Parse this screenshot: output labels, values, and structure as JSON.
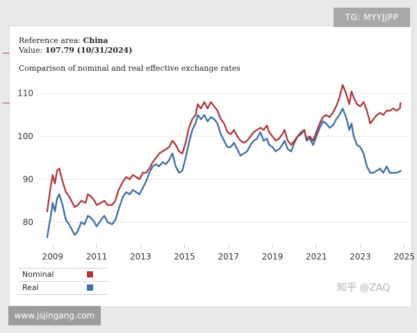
{
  "header": {
    "reference_label": "Reference area:",
    "reference_value": "China",
    "value_label": "Value:",
    "value_text": "107.79 (10/31/2024)"
  },
  "badges": {
    "telegram": "TG: MYYJJPP",
    "site": "www.jsjingang.com",
    "watermark": "知乎 @ZAQ"
  },
  "colors": {
    "nominal": "#b03a3e",
    "real": "#3f6fa8",
    "grid": "#e6e6e6"
  },
  "chart_data": {
    "type": "line",
    "title": "Comparison of nominal and real effective exchange rates",
    "xlabel": "",
    "ylabel": "",
    "xlim": [
      2008.5,
      2025.2
    ],
    "ylim": [
      76,
      114
    ],
    "x_ticks": [
      "2009",
      "2011",
      "2013",
      "2015",
      "2017",
      "2019",
      "2021",
      "2023",
      "2025"
    ],
    "y_ticks": [
      "80",
      "90",
      "100",
      "110"
    ],
    "grid": true,
    "legend_position": "bottom-left",
    "series": [
      {
        "name": "Nominal",
        "points": [
          [
            2008.75,
            82.5
          ],
          [
            2008.9,
            88
          ],
          [
            2009.0,
            91
          ],
          [
            2009.1,
            89
          ],
          [
            2009.2,
            92
          ],
          [
            2009.3,
            92.5
          ],
          [
            2009.45,
            89.5
          ],
          [
            2009.6,
            87
          ],
          [
            2009.75,
            86
          ],
          [
            2009.9,
            84.5
          ],
          [
            2010.0,
            83.5
          ],
          [
            2010.15,
            84
          ],
          [
            2010.3,
            85
          ],
          [
            2010.5,
            84.5
          ],
          [
            2010.6,
            86.5
          ],
          [
            2010.75,
            86
          ],
          [
            2010.9,
            85
          ],
          [
            2011.0,
            84
          ],
          [
            2011.2,
            84.5
          ],
          [
            2011.35,
            85
          ],
          [
            2011.5,
            84
          ],
          [
            2011.7,
            84
          ],
          [
            2011.85,
            85
          ],
          [
            2012.0,
            87.5
          ],
          [
            2012.2,
            89.5
          ],
          [
            2012.35,
            90.5
          ],
          [
            2012.5,
            90
          ],
          [
            2012.65,
            91
          ],
          [
            2012.8,
            90.5
          ],
          [
            2012.95,
            90
          ],
          [
            2013.1,
            91.5
          ],
          [
            2013.25,
            91.5
          ],
          [
            2013.4,
            92.5
          ],
          [
            2013.55,
            94
          ],
          [
            2013.7,
            95
          ],
          [
            2013.85,
            96
          ],
          [
            2014.0,
            96.5
          ],
          [
            2014.15,
            97
          ],
          [
            2014.3,
            97.5
          ],
          [
            2014.45,
            99
          ],
          [
            2014.6,
            98
          ],
          [
            2014.75,
            96.5
          ],
          [
            2014.9,
            96
          ],
          [
            2015.05,
            98.5
          ],
          [
            2015.2,
            102
          ],
          [
            2015.35,
            104
          ],
          [
            2015.5,
            105
          ],
          [
            2015.6,
            107.5
          ],
          [
            2015.75,
            106.5
          ],
          [
            2015.9,
            108
          ],
          [
            2016.05,
            106.5
          ],
          [
            2016.2,
            108
          ],
          [
            2016.35,
            107
          ],
          [
            2016.5,
            106
          ],
          [
            2016.65,
            104
          ],
          [
            2016.8,
            103
          ],
          [
            2016.95,
            101
          ],
          [
            2017.1,
            100.5
          ],
          [
            2017.25,
            101.5
          ],
          [
            2017.4,
            100
          ],
          [
            2017.55,
            99
          ],
          [
            2017.7,
            98.5
          ],
          [
            2017.85,
            99
          ],
          [
            2018.0,
            100
          ],
          [
            2018.15,
            101
          ],
          [
            2018.3,
            101.5
          ],
          [
            2018.45,
            102
          ],
          [
            2018.6,
            101.5
          ],
          [
            2018.75,
            102.5
          ],
          [
            2018.85,
            101
          ],
          [
            2019.0,
            100
          ],
          [
            2019.15,
            99
          ],
          [
            2019.3,
            99.5
          ],
          [
            2019.45,
            100.5
          ],
          [
            2019.55,
            101.5
          ],
          [
            2019.7,
            99
          ],
          [
            2019.85,
            98
          ],
          [
            2020.0,
            99
          ],
          [
            2020.15,
            100
          ],
          [
            2020.3,
            100.5
          ],
          [
            2020.45,
            101.5
          ],
          [
            2020.55,
            99.5
          ],
          [
            2020.7,
            100
          ],
          [
            2020.85,
            99
          ],
          [
            2021.0,
            101
          ],
          [
            2021.15,
            103
          ],
          [
            2021.3,
            104.5
          ],
          [
            2021.45,
            105
          ],
          [
            2021.6,
            104.5
          ],
          [
            2021.75,
            105.5
          ],
          [
            2021.9,
            107
          ],
          [
            2022.05,
            109
          ],
          [
            2022.2,
            112
          ],
          [
            2022.35,
            110
          ],
          [
            2022.5,
            107.5
          ],
          [
            2022.6,
            110.5
          ],
          [
            2022.7,
            109
          ],
          [
            2022.85,
            107.5
          ],
          [
            2023.0,
            107
          ],
          [
            2023.15,
            108
          ],
          [
            2023.3,
            106
          ],
          [
            2023.45,
            103
          ],
          [
            2023.6,
            104
          ],
          [
            2023.75,
            105
          ],
          [
            2023.9,
            105.5
          ],
          [
            2024.05,
            105
          ],
          [
            2024.2,
            106
          ],
          [
            2024.35,
            106
          ],
          [
            2024.5,
            106.5
          ],
          [
            2024.65,
            106
          ],
          [
            2024.8,
            106.5
          ],
          [
            2024.83,
            107.79
          ]
        ]
      },
      {
        "name": "Real",
        "points": [
          [
            2008.75,
            76.5
          ],
          [
            2008.9,
            81
          ],
          [
            2009.0,
            84.5
          ],
          [
            2009.1,
            82.5
          ],
          [
            2009.2,
            85.5
          ],
          [
            2009.3,
            86.5
          ],
          [
            2009.45,
            84
          ],
          [
            2009.6,
            80.5
          ],
          [
            2009.75,
            79.5
          ],
          [
            2009.9,
            78
          ],
          [
            2010.0,
            77
          ],
          [
            2010.15,
            78
          ],
          [
            2010.3,
            80
          ],
          [
            2010.45,
            79.5
          ],
          [
            2010.6,
            81.5
          ],
          [
            2010.75,
            81
          ],
          [
            2010.9,
            80
          ],
          [
            2011.0,
            79
          ],
          [
            2011.2,
            80.5
          ],
          [
            2011.35,
            81.5
          ],
          [
            2011.5,
            80
          ],
          [
            2011.7,
            79.5
          ],
          [
            2011.85,
            80.5
          ],
          [
            2012.0,
            83
          ],
          [
            2012.2,
            86
          ],
          [
            2012.35,
            87
          ],
          [
            2012.5,
            86.5
          ],
          [
            2012.65,
            87.5
          ],
          [
            2012.8,
            87
          ],
          [
            2012.95,
            86.5
          ],
          [
            2013.1,
            88
          ],
          [
            2013.25,
            89.5
          ],
          [
            2013.4,
            91.5
          ],
          [
            2013.55,
            93
          ],
          [
            2013.7,
            93.5
          ],
          [
            2013.85,
            93
          ],
          [
            2014.0,
            94
          ],
          [
            2014.15,
            93.5
          ],
          [
            2014.3,
            94.5
          ],
          [
            2014.45,
            96
          ],
          [
            2014.6,
            93
          ],
          [
            2014.75,
            91.5
          ],
          [
            2014.9,
            92
          ],
          [
            2015.05,
            95
          ],
          [
            2015.2,
            98.5
          ],
          [
            2015.35,
            101.5
          ],
          [
            2015.5,
            103
          ],
          [
            2015.6,
            105
          ],
          [
            2015.75,
            104
          ],
          [
            2015.9,
            105
          ],
          [
            2016.05,
            103.5
          ],
          [
            2016.2,
            104.5
          ],
          [
            2016.35,
            104
          ],
          [
            2016.5,
            103
          ],
          [
            2016.65,
            100.5
          ],
          [
            2016.8,
            99
          ],
          [
            2016.95,
            97.5
          ],
          [
            2017.1,
            97.5
          ],
          [
            2017.25,
            98.5
          ],
          [
            2017.4,
            97
          ],
          [
            2017.55,
            95.5
          ],
          [
            2017.7,
            96
          ],
          [
            2017.85,
            96.5
          ],
          [
            2018.0,
            98
          ],
          [
            2018.15,
            99
          ],
          [
            2018.3,
            99.5
          ],
          [
            2018.45,
            101
          ],
          [
            2018.6,
            99
          ],
          [
            2018.75,
            99.5
          ],
          [
            2018.85,
            98
          ],
          [
            2019.0,
            97.5
          ],
          [
            2019.15,
            96.5
          ],
          [
            2019.3,
            97
          ],
          [
            2019.45,
            98
          ],
          [
            2019.55,
            99
          ],
          [
            2019.7,
            97
          ],
          [
            2019.85,
            96.5
          ],
          [
            2020.0,
            98.5
          ],
          [
            2020.15,
            100
          ],
          [
            2020.3,
            101
          ],
          [
            2020.45,
            101.5
          ],
          [
            2020.55,
            99
          ],
          [
            2020.7,
            99.5
          ],
          [
            2020.85,
            98
          ],
          [
            2021.0,
            100
          ],
          [
            2021.15,
            102
          ],
          [
            2021.3,
            103.5
          ],
          [
            2021.45,
            103
          ],
          [
            2021.6,
            102
          ],
          [
            2021.75,
            102.5
          ],
          [
            2021.9,
            104
          ],
          [
            2022.05,
            105
          ],
          [
            2022.2,
            106.5
          ],
          [
            2022.35,
            104.5
          ],
          [
            2022.5,
            101.5
          ],
          [
            2022.6,
            103
          ],
          [
            2022.7,
            100
          ],
          [
            2022.85,
            98
          ],
          [
            2023.0,
            97.5
          ],
          [
            2023.15,
            96
          ],
          [
            2023.3,
            93
          ],
          [
            2023.45,
            91.5
          ],
          [
            2023.6,
            91.5
          ],
          [
            2023.75,
            92
          ],
          [
            2023.9,
            92.5
          ],
          [
            2024.05,
            91.5
          ],
          [
            2024.2,
            93
          ],
          [
            2024.35,
            91.5
          ],
          [
            2024.5,
            91.5
          ],
          [
            2024.65,
            91.5
          ],
          [
            2024.8,
            91.8
          ],
          [
            2024.83,
            92
          ]
        ]
      }
    ]
  }
}
